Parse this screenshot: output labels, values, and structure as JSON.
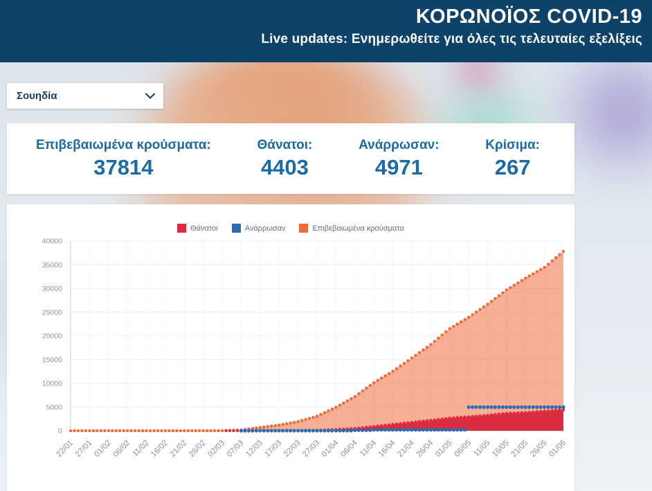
{
  "header": {
    "title": "ΚΟΡΩΝΟΪΟΣ COVID-19",
    "subtitle": "Live updates: Ενημερωθείτε για όλες τις τελευταίες εξελίξεις"
  },
  "country_select": {
    "value": "Σουηδία"
  },
  "stats": {
    "items": [
      {
        "label": "Επιβεβαιωμένα κρούσματα:",
        "value": "37814"
      },
      {
        "label": "Θάνατοι:",
        "value": "4403"
      },
      {
        "label": "Ανάρρωσαν:",
        "value": "4971"
      },
      {
        "label": "Κρίσιμα:",
        "value": "267"
      }
    ]
  },
  "chart_data": {
    "type": "area",
    "categories": [
      "22/01",
      "27/01",
      "01/02",
      "06/02",
      "11/02",
      "16/02",
      "21/02",
      "26/02",
      "02/03",
      "07/03",
      "12/03",
      "17/03",
      "22/03",
      "27/03",
      "01/04",
      "06/04",
      "11/04",
      "16/04",
      "21/04",
      "26/04",
      "01/05",
      "06/05",
      "11/05",
      "16/05",
      "21/05",
      "26/05",
      "01/06"
    ],
    "series": [
      {
        "name": "Θάνατοι",
        "color": "#e02c3f",
        "fill": "#d7263b",
        "fill_opacity": 0.95,
        "values": [
          0,
          0,
          0,
          0,
          0,
          0,
          0,
          0,
          0,
          1,
          1,
          10,
          21,
          105,
          239,
          477,
          887,
          1333,
          1765,
          2192,
          2653,
          2941,
          3256,
          3674,
          3831,
          4125,
          4403
        ]
      },
      {
        "name": "Ανάρρωσαν",
        "color": "#2d6cb5",
        "fill": "none",
        "fill_opacity": 0,
        "values": [
          0,
          0,
          0,
          0,
          0,
          0,
          0,
          0,
          0,
          1,
          16,
          16,
          16,
          16,
          16,
          103,
          205,
          205,
          205,
          205,
          205,
          4971,
          4971,
          4971,
          4971,
          4971,
          4971
        ]
      },
      {
        "name": "Επιβεβαιωμένα κρούσματα",
        "color": "#ed6a3a",
        "fill": "#f07a4e",
        "fill_opacity": 0.6,
        "values": [
          0,
          0,
          1,
          1,
          1,
          1,
          1,
          7,
          15,
          161,
          687,
          1190,
          1934,
          3046,
          4947,
          7206,
          10151,
          12540,
          15322,
          18177,
          21520,
          23918,
          26670,
          29677,
          32172,
          34440,
          37814
        ]
      }
    ],
    "ylim": [
      0,
      40000
    ],
    "ytick_step": 5000,
    "grid": true,
    "legend_position": "top"
  }
}
